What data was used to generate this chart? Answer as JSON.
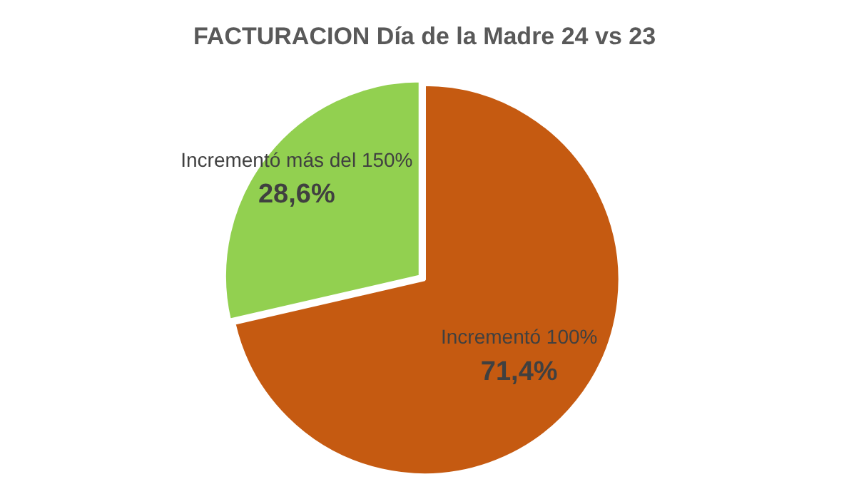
{
  "chart_data": {
    "type": "pie",
    "title": "FACTURACION Día de la Madre 24 vs 23",
    "categories": [
      "Incrementó 100%",
      "Incrementó más del 150%"
    ],
    "values": [
      71.4,
      28.6
    ],
    "colors": [
      "#c55a11",
      "#92d050"
    ],
    "value_labels": [
      "71,4%",
      "28,6%"
    ],
    "legend": false
  }
}
